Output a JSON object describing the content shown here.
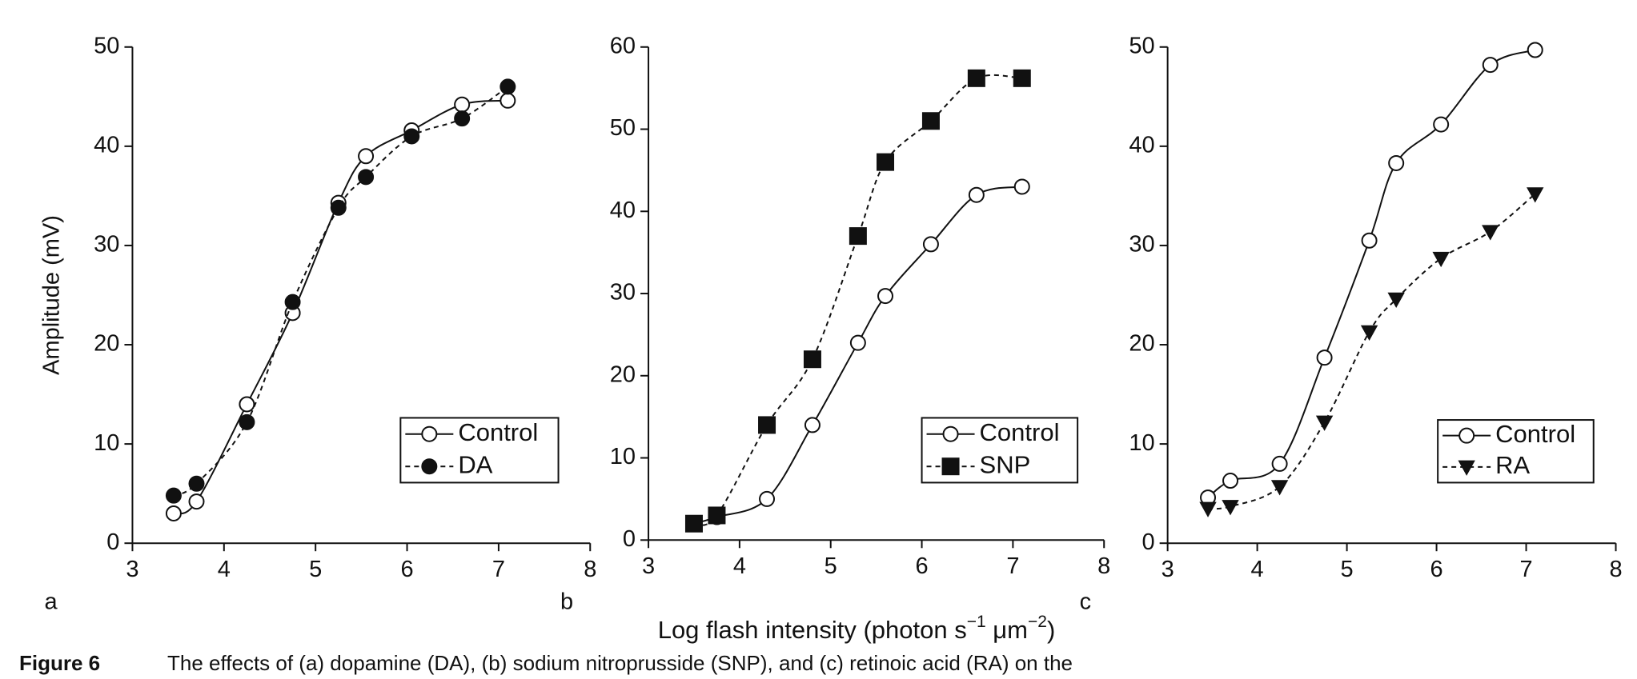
{
  "chart_data": [
    {
      "type": "line",
      "panel": "a",
      "ylabel": "Amplitude (mV)",
      "x": [
        3.45,
        3.7,
        4.25,
        4.75,
        5.25,
        5.55,
        6.05,
        6.6,
        7.1
      ],
      "series": [
        {
          "name": "Control",
          "color": "#111111",
          "marker": "open-circle",
          "dashed": false,
          "values": [
            3,
            4.2,
            14,
            23.2,
            34.3,
            39,
            41.6,
            44.2,
            44.6
          ]
        },
        {
          "name": "DA",
          "color": "#111111",
          "marker": "filled-circle",
          "dashed": true,
          "values": [
            4.8,
            6,
            12.2,
            24.3,
            33.8,
            36.9,
            41,
            42.8,
            46
          ]
        }
      ],
      "xlim": [
        3,
        8
      ],
      "xticks": [
        3,
        4,
        5,
        6,
        7,
        8
      ],
      "ylim": [
        0,
        50
      ],
      "yticks": [
        0,
        10,
        20,
        30,
        40,
        50
      ],
      "legend": "lower right",
      "grid": false
    },
    {
      "type": "line",
      "panel": "b",
      "x": [
        3.5,
        3.75,
        4.3,
        4.8,
        5.3,
        5.6,
        6.1,
        6.6,
        7.1
      ],
      "series": [
        {
          "name": "Control",
          "color": "#111111",
          "marker": "open-circle",
          "dashed": false,
          "values": [
            2,
            2.8,
            5,
            14,
            24,
            29.7,
            36,
            42,
            43
          ]
        },
        {
          "name": "SNP",
          "color": "#111111",
          "marker": "filled-square",
          "dashed": true,
          "values": [
            2,
            3,
            14,
            22,
            37,
            46,
            51,
            56.2,
            56.2
          ]
        }
      ],
      "xlim": [
        3,
        8
      ],
      "xticks": [
        3,
        4,
        5,
        6,
        7,
        8
      ],
      "ylim": [
        0,
        60
      ],
      "yticks": [
        0,
        10,
        20,
        30,
        40,
        50,
        60
      ],
      "legend": "lower right",
      "grid": false
    },
    {
      "type": "line",
      "panel": "c",
      "x": [
        3.45,
        3.7,
        4.25,
        4.75,
        5.25,
        5.55,
        6.05,
        6.6,
        7.1
      ],
      "series": [
        {
          "name": "Control",
          "color": "#111111",
          "marker": "open-circle",
          "dashed": false,
          "values": [
            4.6,
            6.3,
            8,
            18.7,
            30.5,
            38.3,
            42.2,
            48.2,
            49.7
          ]
        },
        {
          "name": "RA",
          "color": "#111111",
          "marker": "filled-triangle-down",
          "dashed": true,
          "values": [
            3.5,
            3.7,
            5.7,
            12.2,
            21.3,
            24.6,
            28.7,
            31.4,
            35.2
          ]
        }
      ],
      "xlim": [
        3,
        8
      ],
      "xticks": [
        3,
        4,
        5,
        6,
        7,
        8
      ],
      "ylim": [
        0,
        50
      ],
      "yticks": [
        0,
        10,
        20,
        30,
        40,
        50
      ],
      "legend": "lower right",
      "grid": false
    }
  ],
  "xlabel": [
    "Log flash intensity (photon s",
    "−1",
    " μm",
    "−2",
    ")"
  ],
  "caption": {
    "label": "Figure 6",
    "text": "The effects of (a) dopamine (DA), (b) sodium nitroprusside (SNP), and (c) retinoic acid (RA) on the"
  }
}
